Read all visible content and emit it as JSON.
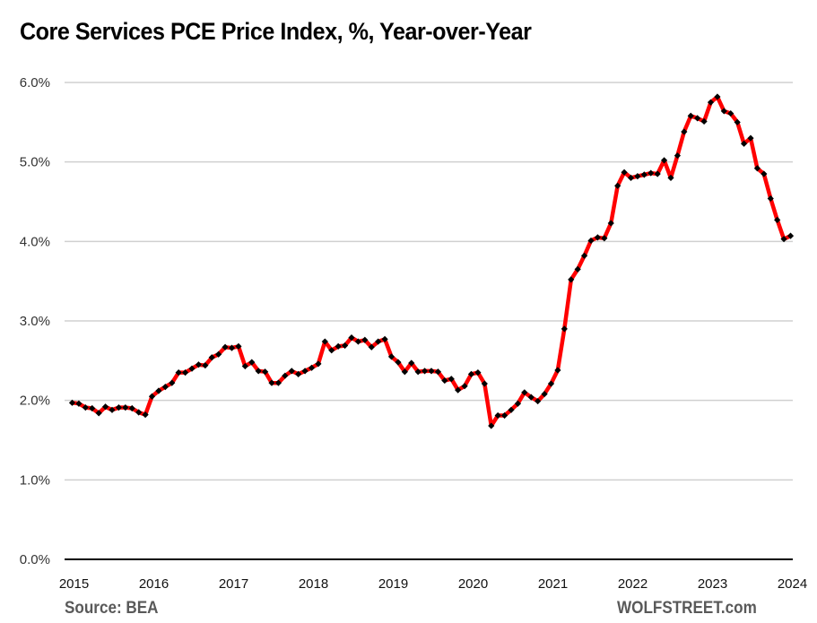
{
  "chart_data": {
    "type": "line",
    "title": "Core Services PCE Price Index, %, Year-over-Year",
    "xlabel": "",
    "ylabel": "",
    "source": "Source: BEA",
    "brand": "WOLFSTREET.com",
    "ylim": [
      0,
      6
    ],
    "yticks": [
      "0.0%",
      "1.0%",
      "2.0%",
      "3.0%",
      "4.0%",
      "5.0%",
      "6.0%"
    ],
    "ytick_values": [
      0,
      1,
      2,
      3,
      4,
      5,
      6
    ],
    "xticks": [
      "2015",
      "2016",
      "2017",
      "2018",
      "2019",
      "2020",
      "2021",
      "2022",
      "2023",
      "2024"
    ],
    "x_start": "2015-01",
    "x_frequency": "monthly",
    "grid": true,
    "legend": "none",
    "line_color": "#ff0000",
    "marker_color": "#000000",
    "series": [
      {
        "name": "Core Services PCE YoY %",
        "values": [
          1.97,
          1.96,
          1.91,
          1.9,
          1.84,
          1.92,
          1.88,
          1.91,
          1.91,
          1.9,
          1.85,
          1.82,
          2.05,
          2.12,
          2.17,
          2.22,
          2.35,
          2.35,
          2.4,
          2.45,
          2.44,
          2.54,
          2.58,
          2.67,
          2.66,
          2.68,
          2.43,
          2.48,
          2.37,
          2.36,
          2.22,
          2.22,
          2.31,
          2.37,
          2.33,
          2.37,
          2.41,
          2.46,
          2.74,
          2.63,
          2.68,
          2.69,
          2.79,
          2.74,
          2.76,
          2.67,
          2.74,
          2.77,
          2.55,
          2.48,
          2.36,
          2.47,
          2.36,
          2.37,
          2.37,
          2.36,
          2.25,
          2.27,
          2.13,
          2.18,
          2.33,
          2.35,
          2.21,
          1.68,
          1.81,
          1.81,
          1.88,
          1.96,
          2.1,
          2.04,
          1.99,
          2.08,
          2.21,
          2.38,
          2.9,
          3.52,
          3.65,
          3.82,
          4.01,
          4.05,
          4.04,
          4.23,
          4.7,
          4.87,
          4.8,
          4.82,
          4.84,
          4.86,
          4.85,
          5.02,
          4.8,
          5.08,
          5.38,
          5.58,
          5.55,
          5.51,
          5.75,
          5.82,
          5.64,
          5.61,
          5.5,
          5.23,
          5.3,
          4.92,
          4.85,
          4.54,
          4.27,
          4.03,
          4.07
        ]
      }
    ]
  }
}
